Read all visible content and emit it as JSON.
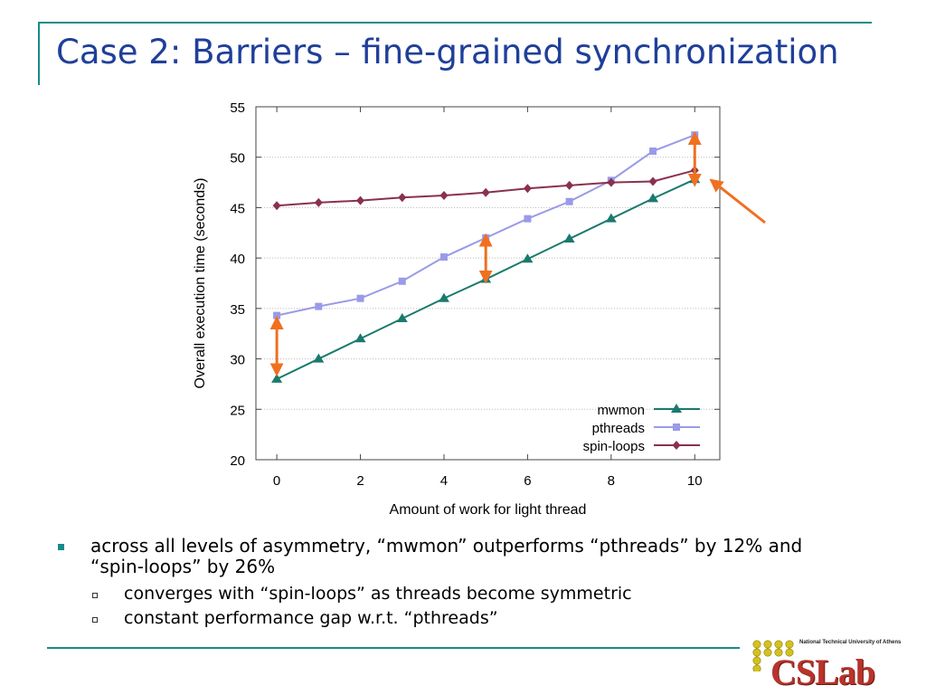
{
  "slide": {
    "title": "Case 2: Barriers – fine-grained synchronization",
    "bullets": [
      {
        "text": "across all levels of asymmetry, “mwmon” outperforms “pthreads” by 12% and “spin-loops” by 26%",
        "sub": [
          "converges with “spin-loops” as threads become symmetric",
          "constant performance gap w.r.t. “pthreads”"
        ]
      }
    ]
  },
  "logo": {
    "subtitle": "National Technical University of Athens",
    "text": "CSLab",
    "dot_color": "#d4c21c"
  },
  "chart_data": {
    "type": "line",
    "xlabel": "Amount of work for light thread",
    "ylabel": "Overall execution time (seconds)",
    "xlim": [
      -0.5,
      10.6
    ],
    "ylim": [
      20,
      55
    ],
    "xticks": [
      0,
      2,
      4,
      6,
      8,
      10
    ],
    "yticks": [
      20,
      25,
      30,
      35,
      40,
      45,
      50,
      55
    ],
    "grid": "horizontal",
    "legend_position": "bottom-right",
    "x": [
      0,
      1,
      2,
      3,
      4,
      5,
      6,
      7,
      8,
      9,
      10
    ],
    "series": [
      {
        "name": "mwmon",
        "color": "#1a7a6e",
        "marker": "triangle",
        "values": [
          28.0,
          30.0,
          32.0,
          34.0,
          36.0,
          37.9,
          39.9,
          41.9,
          43.9,
          45.9,
          47.8
        ]
      },
      {
        "name": "pthreads",
        "color": "#9a9ae8",
        "marker": "square",
        "values": [
          34.3,
          35.2,
          36.0,
          37.7,
          40.1,
          42.0,
          43.9,
          45.6,
          47.7,
          50.6,
          52.2
        ]
      },
      {
        "name": "spin-loops",
        "color": "#8a3050",
        "marker": "diamond",
        "values": [
          45.2,
          45.5,
          45.7,
          46.0,
          46.2,
          46.5,
          46.9,
          47.2,
          47.5,
          47.6,
          48.7
        ]
      }
    ],
    "annotations": {
      "color": "#f07020",
      "double_arrows": [
        {
          "x": 0,
          "y_from": 28.5,
          "y_to": 34.0
        },
        {
          "x": 5,
          "y_from": 37.7,
          "y_to": 42.2
        },
        {
          "x": 10,
          "y_from": 47.3,
          "y_to": 52.3
        }
      ],
      "pointer_arrow": {
        "target_x": 10.4,
        "target_y": 47.7
      }
    }
  }
}
